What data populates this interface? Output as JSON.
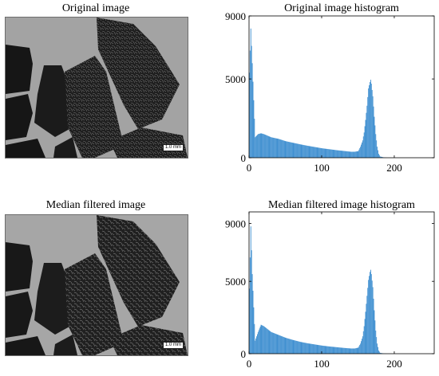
{
  "panels": {
    "original_image_title": "Original image",
    "median_image_title": "Median filtered image",
    "scale_label": "1.0 mm"
  },
  "colors": {
    "histogram_bar": "#3f8fd0",
    "image_background": "#9a9a9a",
    "particle": "#1e1e1e"
  },
  "chart_data": [
    {
      "type": "bar",
      "title": "Original image histogram",
      "xlabel": "",
      "ylabel": "",
      "xlim": [
        0,
        255
      ],
      "ylim": [
        0,
        9000
      ],
      "xticks": [
        0,
        100,
        200
      ],
      "yticks": [
        0,
        5000,
        9000
      ],
      "grid": false,
      "x": [
        0,
        2,
        4,
        8,
        12,
        16,
        20,
        25,
        30,
        40,
        50,
        60,
        70,
        80,
        90,
        100,
        110,
        120,
        130,
        140,
        145,
        150,
        153,
        156,
        158,
        160,
        162,
        164,
        166,
        167,
        168,
        170,
        172,
        174,
        176,
        178,
        180,
        185,
        190,
        200,
        255
      ],
      "values": [
        5400,
        8200,
        6000,
        1300,
        1500,
        1550,
        1500,
        1400,
        1300,
        1200,
        1050,
        950,
        850,
        760,
        680,
        600,
        540,
        480,
        430,
        380,
        380,
        420,
        700,
        1100,
        1600,
        2400,
        3300,
        4400,
        4800,
        4950,
        4700,
        3900,
        2600,
        1500,
        700,
        250,
        80,
        20,
        0,
        0,
        0
      ]
    },
    {
      "type": "bar",
      "title": "Median filtered image histogram",
      "xlabel": "",
      "ylabel": "",
      "xlim": [
        0,
        255
      ],
      "ylim": [
        0,
        9800
      ],
      "xticks": [
        0,
        100,
        200
      ],
      "yticks": [
        0,
        5000,
        9000
      ],
      "grid": false,
      "x": [
        0,
        2,
        4,
        8,
        12,
        16,
        20,
        25,
        30,
        40,
        50,
        60,
        70,
        80,
        90,
        100,
        110,
        120,
        130,
        140,
        145,
        150,
        153,
        156,
        158,
        160,
        162,
        164,
        166,
        167,
        168,
        170,
        172,
        174,
        176,
        178,
        180,
        185,
        190,
        200,
        255
      ],
      "values": [
        4500,
        8800,
        5500,
        900,
        1500,
        2000,
        1900,
        1700,
        1500,
        1300,
        1100,
        950,
        820,
        720,
        640,
        560,
        500,
        450,
        400,
        360,
        360,
        420,
        700,
        1200,
        1900,
        2900,
        4000,
        5100,
        5650,
        5800,
        5500,
        4600,
        3000,
        1600,
        700,
        220,
        60,
        10,
        0,
        0,
        0
      ]
    }
  ]
}
